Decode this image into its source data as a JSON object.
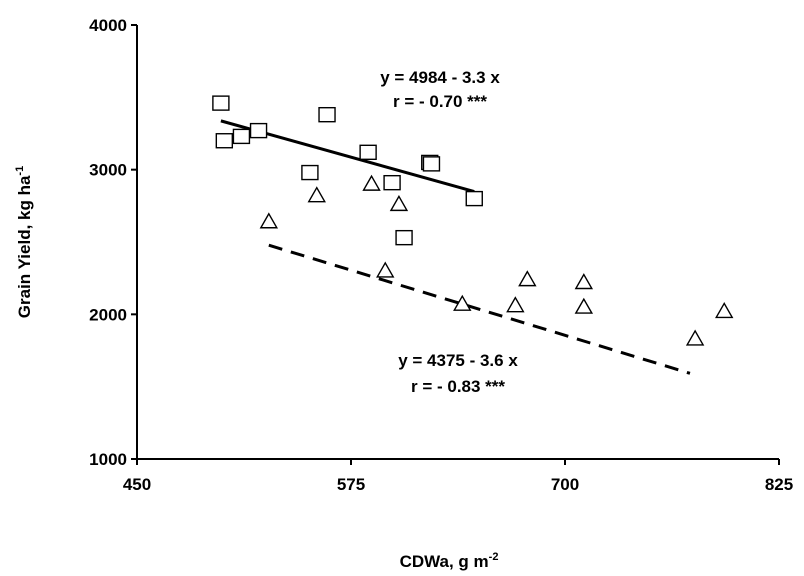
{
  "chart_data": {
    "type": "scatter",
    "xlabel": "CDWa, g m",
    "xlabel_sup": "-2",
    "ylabel": "Grain Yield, kg ha",
    "ylabel_sup": "-1",
    "xlim": [
      450,
      825
    ],
    "ylim": [
      1000,
      4000
    ],
    "xticks": [
      450,
      575,
      700,
      825
    ],
    "yticks": [
      1000,
      2000,
      3000,
      4000
    ],
    "grid": false,
    "series": [
      {
        "marker": "square",
        "points": [
          [
            499,
            3460
          ],
          [
            501,
            3200
          ],
          [
            511,
            3230
          ],
          [
            521,
            3270
          ],
          [
            551,
            2980
          ],
          [
            561,
            3380
          ],
          [
            585,
            3120
          ],
          [
            599,
            2910
          ],
          [
            621,
            3050
          ],
          [
            622,
            3040
          ],
          [
            606,
            2530
          ],
          [
            647,
            2800
          ]
        ],
        "fit": {
          "intercept": 4984,
          "slope": -3.3,
          "x_range": [
            499,
            647
          ],
          "style": "solid"
        },
        "equation": "y = 4984 - 3.3 x",
        "r_text": "r = - 0.70 ***"
      },
      {
        "marker": "triangle",
        "points": [
          [
            527,
            2640
          ],
          [
            555,
            2820
          ],
          [
            587,
            2900
          ],
          [
            595,
            2300
          ],
          [
            603,
            2760
          ],
          [
            640,
            2070
          ],
          [
            671,
            2060
          ],
          [
            678,
            2240
          ],
          [
            711,
            2220
          ],
          [
            711,
            2050
          ],
          [
            776,
            1830
          ],
          [
            793,
            2020
          ]
        ],
        "fit": {
          "intercept": 4375,
          "slope": -3.6,
          "x_range": [
            527,
            773
          ],
          "style": "dashed"
        },
        "equation": "y = 4375 - 3.6 x",
        "r_text": "r = - 0.83 ***"
      }
    ]
  }
}
